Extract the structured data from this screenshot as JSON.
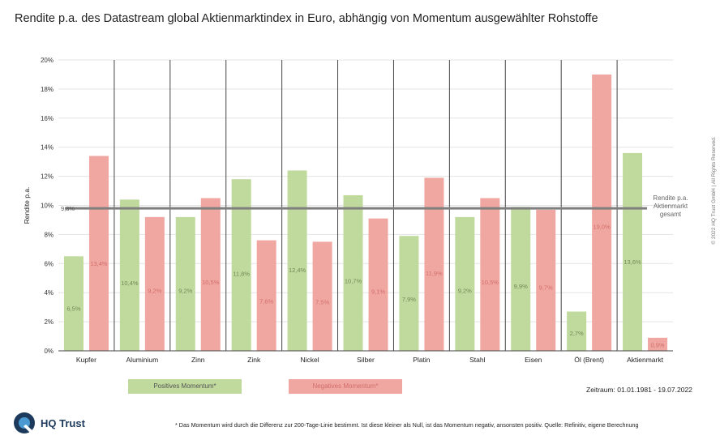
{
  "title": "Rendite p.a. des Datastream global Aktienmarktindex in Euro, abhängig von Momentum ausgewählter Rohstoffe",
  "copyright": "© 2022 HQ Trust GmbH | All Rights Reserved.",
  "brand": {
    "name": "HQ Trust",
    "primary_color": "#1d3a5c",
    "accent_color": "#4a9ad1"
  },
  "legend": {
    "positive": "Positives Momentum*",
    "negative": "Negatives Momentum*"
  },
  "period": "Zeitraum: 01.01.1981 - 19.07.2022",
  "footnote": "* Das Momentum wird durch die Differenz zur 200-Tage-Linie bestimmt. Ist diese kleiner als Null, ist das Momentum negativ, ansonsten positiv. Quelle: Refinitiv, eigene Berechnung",
  "chart_data": {
    "type": "bar",
    "ylabel": "Rendite p.a.",
    "xlabel": "",
    "ylim": [
      0,
      20
    ],
    "yticks": [
      0,
      2,
      4,
      6,
      8,
      10,
      12,
      14,
      16,
      18,
      20
    ],
    "ytick_labels": [
      "0%",
      "2%",
      "4%",
      "6%",
      "8%",
      "10%",
      "12%",
      "14%",
      "16%",
      "18%",
      "20%"
    ],
    "grid": true,
    "categories": [
      "Kupfer",
      "Aluminium",
      "Zinn",
      "Zink",
      "Nickel",
      "Silber",
      "Platin",
      "Stahl",
      "Eisen",
      "Öl (Brent)",
      "Aktienmarkt"
    ],
    "series": [
      {
        "name": "Positives Momentum*",
        "color": "#c0da9e",
        "label_color": "#6f8a55",
        "values": [
          6.5,
          10.4,
          9.2,
          11.8,
          12.4,
          10.7,
          7.9,
          9.2,
          9.9,
          2.7,
          13.6
        ],
        "labels": [
          "6,5%",
          "10,4%",
          "9,2%",
          "11,8%",
          "12,4%",
          "10,7%",
          "7,9%",
          "9,2%",
          "9,9%",
          "2,7%",
          "13,6%"
        ]
      },
      {
        "name": "Negatives Momentum*",
        "color": "#f0a7a2",
        "label_color": "#d26e6a",
        "values": [
          13.4,
          9.2,
          10.5,
          7.6,
          7.5,
          9.1,
          11.9,
          10.5,
          9.7,
          19.0,
          0.9
        ],
        "labels": [
          "13,4%",
          "9,2%",
          "10,5%",
          "7,6%",
          "7,5%",
          "9,1%",
          "11,9%",
          "10,5%",
          "9,7%",
          "19,0%",
          "0,9%"
        ]
      }
    ],
    "reference_line": {
      "value": 9.8,
      "label": "9,8%",
      "annotation": [
        "Rendite p.a.",
        "Aktienmarkt",
        "gesamt"
      ],
      "color": "#7f7f7f"
    }
  }
}
